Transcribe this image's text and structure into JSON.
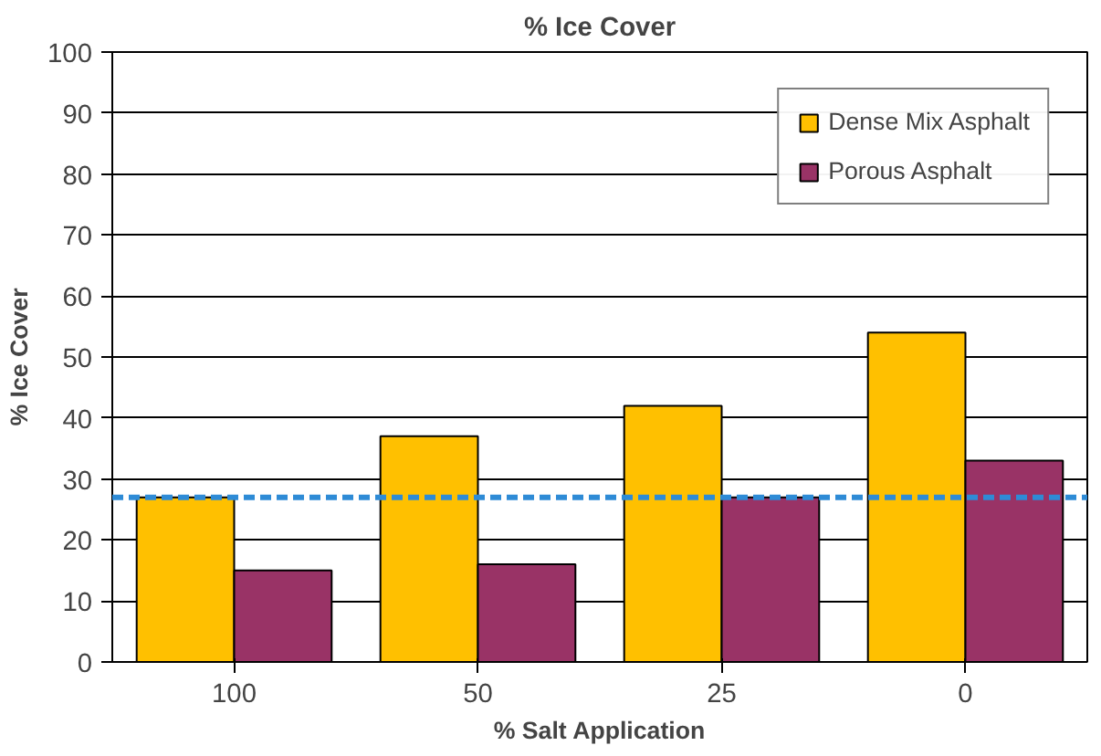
{
  "chart_data": {
    "type": "bar",
    "title": "% Ice Cover",
    "xlabel": "% Salt Application",
    "ylabel": "% Ice Cover",
    "categories": [
      "100",
      "50",
      "25",
      "0"
    ],
    "series": [
      {
        "name": "Dense Mix Asphalt",
        "color": "#ffc000",
        "values": [
          27,
          37,
          42,
          54
        ]
      },
      {
        "name": "Porous Asphalt",
        "color": "#993366",
        "values": [
          15,
          16,
          27,
          33
        ]
      }
    ],
    "ylim": [
      0,
      100
    ],
    "yticks": [
      0,
      10,
      20,
      30,
      40,
      50,
      60,
      70,
      80,
      90,
      100
    ],
    "grid": "y",
    "legend": "top right",
    "ref_lines": [
      {
        "axis": "y",
        "value": 27,
        "color": "#2e8bd6",
        "line_style": "dashed"
      }
    ]
  }
}
